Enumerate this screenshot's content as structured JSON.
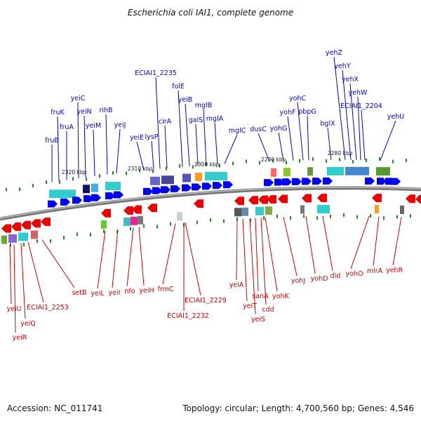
{
  "title": "Escherichia coli IAI1, complete genome",
  "footer": {
    "accession": "Accession: NC_011741",
    "summary": "Topology: circular; Length: 4,700,560 bp; Genes: 4,546"
  },
  "ticks": [
    "2320 kbp",
    "2310 kbp",
    "2300 kbp",
    "2290 kbp",
    "2280 kbp"
  ],
  "forward_genes": [
    "fruB",
    "fruA",
    "fruK",
    "yeiC",
    "yeiN",
    "yeiM",
    "rihB",
    "yeiJ",
    "yeiE",
    "lysP",
    "ECIAI1_2235",
    "cirA",
    "folE",
    "yeiB",
    "galS",
    "mglB",
    "mglA",
    "mglC",
    "dusC",
    "yohG",
    "yohF",
    "yohC",
    "pbpG",
    "bglX",
    "yehZ",
    "yehY",
    "yehX",
    "yehW",
    "ECIAI1_2204",
    "yehU"
  ],
  "reverse_genes": [
    "yeiU",
    "yeiR",
    "yeiQ",
    "ECIAI1_2253",
    "setB",
    "yeiL",
    "yeiI",
    "nfo",
    "yeiH",
    "frmC",
    "ECIAI1_2232",
    "ECIAI1_2229",
    "yeiA",
    "yeiT",
    "yeiS",
    "sanA",
    "cdd",
    "yohK",
    "yohJ",
    "yohD",
    "dld",
    "yohO",
    "mlrA",
    "yehR"
  ],
  "colors": {
    "forward_label": "#0000cc",
    "reverse_label": "#cc0000",
    "forward_arrow": "#0000ee",
    "reverse_arrow": "#ee0000",
    "backbone": "#888888",
    "gc_tick": "#228822"
  }
}
